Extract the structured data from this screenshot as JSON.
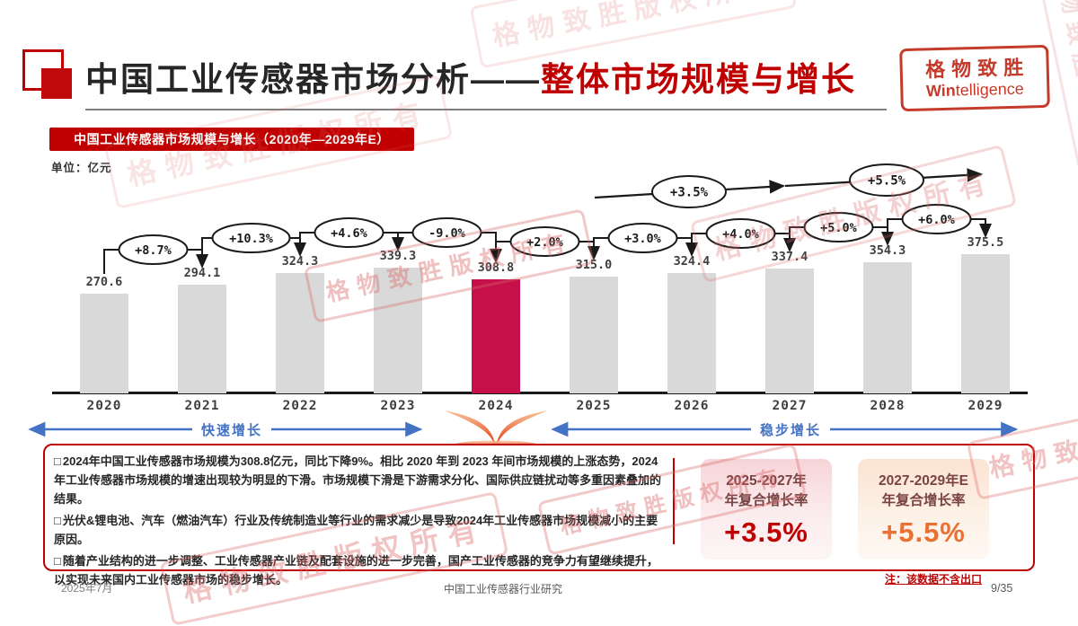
{
  "page": {
    "title_black": "中国工业传感器市场分析——",
    "title_red": "整体市场规模与增长"
  },
  "logo": {
    "cn": "格物致胜",
    "en_bold": "Win",
    "en_rest": "telligence"
  },
  "banner": {
    "text": "中国工业传感器市场规模与增长（2020年—2029年E）"
  },
  "unit_label": "单位：亿元",
  "chart_data": {
    "type": "bar",
    "title": "中国工业传感器市场规模与增长（2020年—2029年E）",
    "ylabel": "亿元",
    "categories": [
      "2020",
      "2021",
      "2022",
      "2023",
      "2024",
      "2025",
      "2026",
      "2027",
      "2028",
      "2029"
    ],
    "values": [
      270.6,
      294.1,
      324.3,
      339.3,
      308.8,
      315.0,
      324.4,
      337.4,
      354.3,
      375.5
    ],
    "value_labels": [
      "270.6",
      "294.1",
      "324.3",
      "339.3",
      "308.8",
      "315.0",
      "324.4",
      "337.4",
      "354.3",
      "375.5"
    ],
    "yoy_labels": [
      "+8.7%",
      "+10.3%",
      "+4.6%",
      "-9.0%",
      "+2.0%",
      "+3.0%",
      "+4.0%",
      "+5.0%",
      "+6.0%"
    ],
    "cagr_labels": [
      "+3.5%",
      "+5.5%"
    ],
    "highlight_index": 4,
    "bar_color": "#D9D9D9",
    "highlight_color": "#C5104A",
    "phase_left": "快速增长",
    "phase_right": "稳步增长",
    "ylim": [
      0,
      400
    ],
    "grid": false,
    "legend": "none"
  },
  "notes": {
    "bullet_char": "□",
    "items": [
      "2024年中国工业传感器市场规模为308.8亿元，同比下降9%。相比 2020 年到 2023 年间市场规模的上涨态势，2024 年工业传感器市场规模的增速出现较为明显的下滑。市场规模下滑是下游需求分化、国际供应链扰动等多重因素叠加的结果。",
      "光伏&锂电池、汽车（燃油汽车）行业及传统制造业等行业的需求减少是导致2024年工业传感器市场规模减小的主要原因。",
      "随着产业结构的进一步调整、工业传感器产业链及配套设施的进一步完善，国产工业传感器的竞争力有望继续提升，以实现未来国内工业传感器市场的稳步增长。"
    ]
  },
  "cagr_boxes": [
    {
      "period": "2025-2027年",
      "metric": "年复合增长率",
      "value": "+3.5%",
      "value_color": "#C00000"
    },
    {
      "period": "2027-2029年E",
      "metric": "年复合增长率",
      "value": "+5.5%",
      "value_color": "#E97132"
    }
  ],
  "footer": {
    "date": "2025年7月",
    "center": "中国工业传感器行业研究",
    "note": "注：该数据不含出口",
    "page": "9/35"
  },
  "watermark": {
    "text": "格物致胜版权所有"
  },
  "colors": {
    "accent": "#C00000",
    "bar": "#D9D9D9",
    "highlight": "#C5104A",
    "blue": "#4472C4"
  }
}
